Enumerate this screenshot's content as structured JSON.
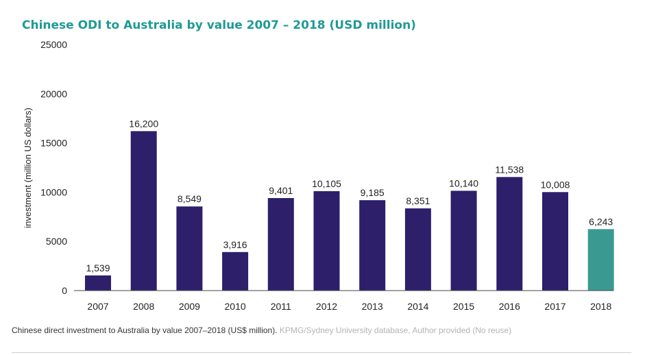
{
  "chart_data": {
    "type": "bar",
    "title": "Chinese ODI to Australia by value 2007 – 2018 (USD million)",
    "ylabel": "investment (million US dollars)",
    "xlabel": "",
    "ylim": [
      0,
      25000
    ],
    "yticks": [
      "0",
      "5000",
      "10000",
      "15000",
      "20000",
      "25000"
    ],
    "categories": [
      "2007",
      "2008",
      "2009",
      "2010",
      "2011",
      "2012",
      "2013",
      "2014",
      "2015",
      "2016",
      "2017",
      "2018"
    ],
    "values": [
      1539,
      16200,
      8549,
      3916,
      9401,
      10105,
      9185,
      8351,
      10140,
      11538,
      10008,
      6243
    ],
    "value_labels": [
      "1,539",
      "16,200",
      "8,549",
      "3,916",
      "9,401",
      "10,105",
      "9,185",
      "8,351",
      "10,140",
      "11,538",
      "10,008",
      "6,243"
    ],
    "grid": false,
    "legend": "none",
    "colors": {
      "default": "#2e1f6b",
      "highlight": "#3a9a92",
      "title": "#1f9a93"
    },
    "highlight_category": "2018"
  },
  "caption": {
    "text": "Chinese direct investment to Australia by value 2007–2018 (US$ million).",
    "credit": "KPMG/Sydney University database, Author provided (No reuse)"
  }
}
